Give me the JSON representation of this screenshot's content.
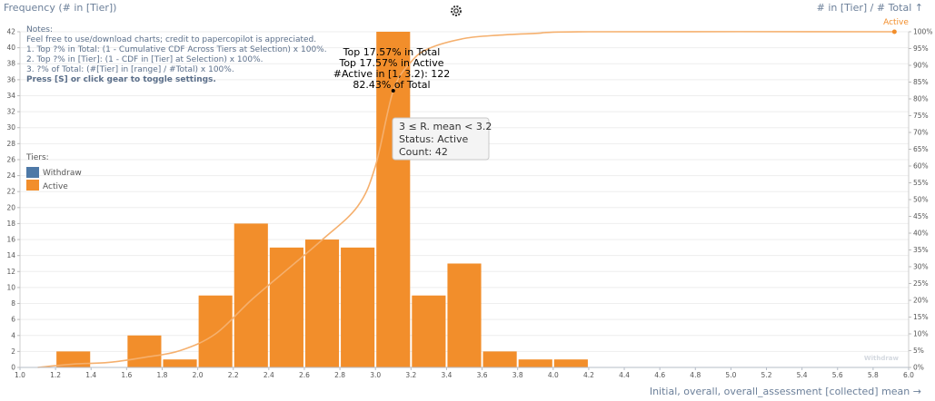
{
  "chart_data": {
    "type": "bar",
    "left_axis_title": "Frequency (# in [Tier])",
    "right_axis_title": "# in [Tier] / # Total ↑",
    "x_axis_title": "Initial, overall, overall_assessment [collected] mean →",
    "bin_width": 0.2,
    "xlim": [
      1.0,
      6.0
    ],
    "x_ticks": [
      "1.0",
      "1.2",
      "1.4",
      "1.6",
      "1.8",
      "2.0",
      "2.2",
      "2.4",
      "2.6",
      "2.8",
      "3.0",
      "3.2",
      "3.4",
      "3.6",
      "3.8",
      "4.0",
      "4.2",
      "4.4",
      "4.6",
      "4.8",
      "5.0",
      "5.2",
      "5.4",
      "5.6",
      "5.8",
      "6.0"
    ],
    "ylim": [
      0,
      42
    ],
    "y_ticks": [
      "0",
      "2",
      "4",
      "6",
      "8",
      "10",
      "12",
      "14",
      "16",
      "18",
      "20",
      "22",
      "24",
      "26",
      "28",
      "30",
      "32",
      "34",
      "36",
      "38",
      "40",
      "42"
    ],
    "y2_ticks": [
      "0%",
      "5%",
      "10%",
      "15%",
      "20%",
      "25%",
      "30%",
      "35%",
      "40%",
      "45%",
      "50%",
      "55%",
      "60%",
      "65%",
      "70%",
      "75%",
      "80%",
      "85%",
      "90%",
      "95%",
      "100%"
    ],
    "series": [
      {
        "name": "Active",
        "color": "#f28e2b",
        "bins": [
          {
            "x0": 1.2,
            "count": 2
          },
          {
            "x0": 1.6,
            "count": 4
          },
          {
            "x0": 1.8,
            "count": 1
          },
          {
            "x0": 2.0,
            "count": 9
          },
          {
            "x0": 2.2,
            "count": 18
          },
          {
            "x0": 2.4,
            "count": 15
          },
          {
            "x0": 2.6,
            "count": 16
          },
          {
            "x0": 2.8,
            "count": 15
          },
          {
            "x0": 3.0,
            "count": 42
          },
          {
            "x0": 3.2,
            "count": 9
          },
          {
            "x0": 3.4,
            "count": 13
          },
          {
            "x0": 3.6,
            "count": 2
          },
          {
            "x0": 3.8,
            "count": 1
          },
          {
            "x0": 4.0,
            "count": 1
          }
        ]
      }
    ],
    "cdf_line": {
      "name": "Active",
      "color": "#f5b06e",
      "points": [
        [
          1.1,
          0
        ],
        [
          1.3,
          1
        ],
        [
          1.5,
          1.5
        ],
        [
          1.7,
          3
        ],
        [
          1.9,
          5
        ],
        [
          2.1,
          10
        ],
        [
          2.3,
          20
        ],
        [
          2.5,
          29
        ],
        [
          2.7,
          38
        ],
        [
          2.9,
          48
        ],
        [
          3.0,
          60
        ],
        [
          3.1,
          82.4
        ],
        [
          3.2,
          91
        ],
        [
          3.3,
          95
        ],
        [
          3.5,
          98
        ],
        [
          3.7,
          99
        ],
        [
          3.9,
          99.5
        ],
        [
          4.2,
          100
        ],
        [
          5.92,
          100
        ]
      ],
      "end_x": 5.92,
      "end_y": 100
    },
    "annotation": {
      "x": 3.1,
      "y": 82.43,
      "lines": [
        "Top 17.57% in Total",
        "Top 17.57% in Active",
        "#Active in [1, 3.2): 122",
        "82.43% of Total"
      ]
    },
    "tooltip": {
      "lines": [
        "3 ≤ R. mean < 3.2",
        "Status: Active",
        "Count: 42"
      ]
    },
    "legend": {
      "title": "Tiers:",
      "placement": "left",
      "items": [
        {
          "label": "Withdraw",
          "color": "#4e79a7"
        },
        {
          "label": "Active",
          "color": "#f28e2b"
        }
      ]
    },
    "notes": [
      "Notes:",
      "Feel free to use/download charts; credit to papercopilot is appreciated.",
      "1. Top ?% in Total: (1 - Cumulative CDF Across Tiers at Selection) x 100%.",
      "2. Top ?% in [Tier]: (1 - CDF in [Tier] at Selection) x 100%.",
      "3. ?% of Total: (#[Tier] in [range] / #Total) x 100%.",
      "Press [S] or click gear to toggle settings."
    ],
    "watermark": "Withdraw",
    "line_end_label": "Active"
  }
}
